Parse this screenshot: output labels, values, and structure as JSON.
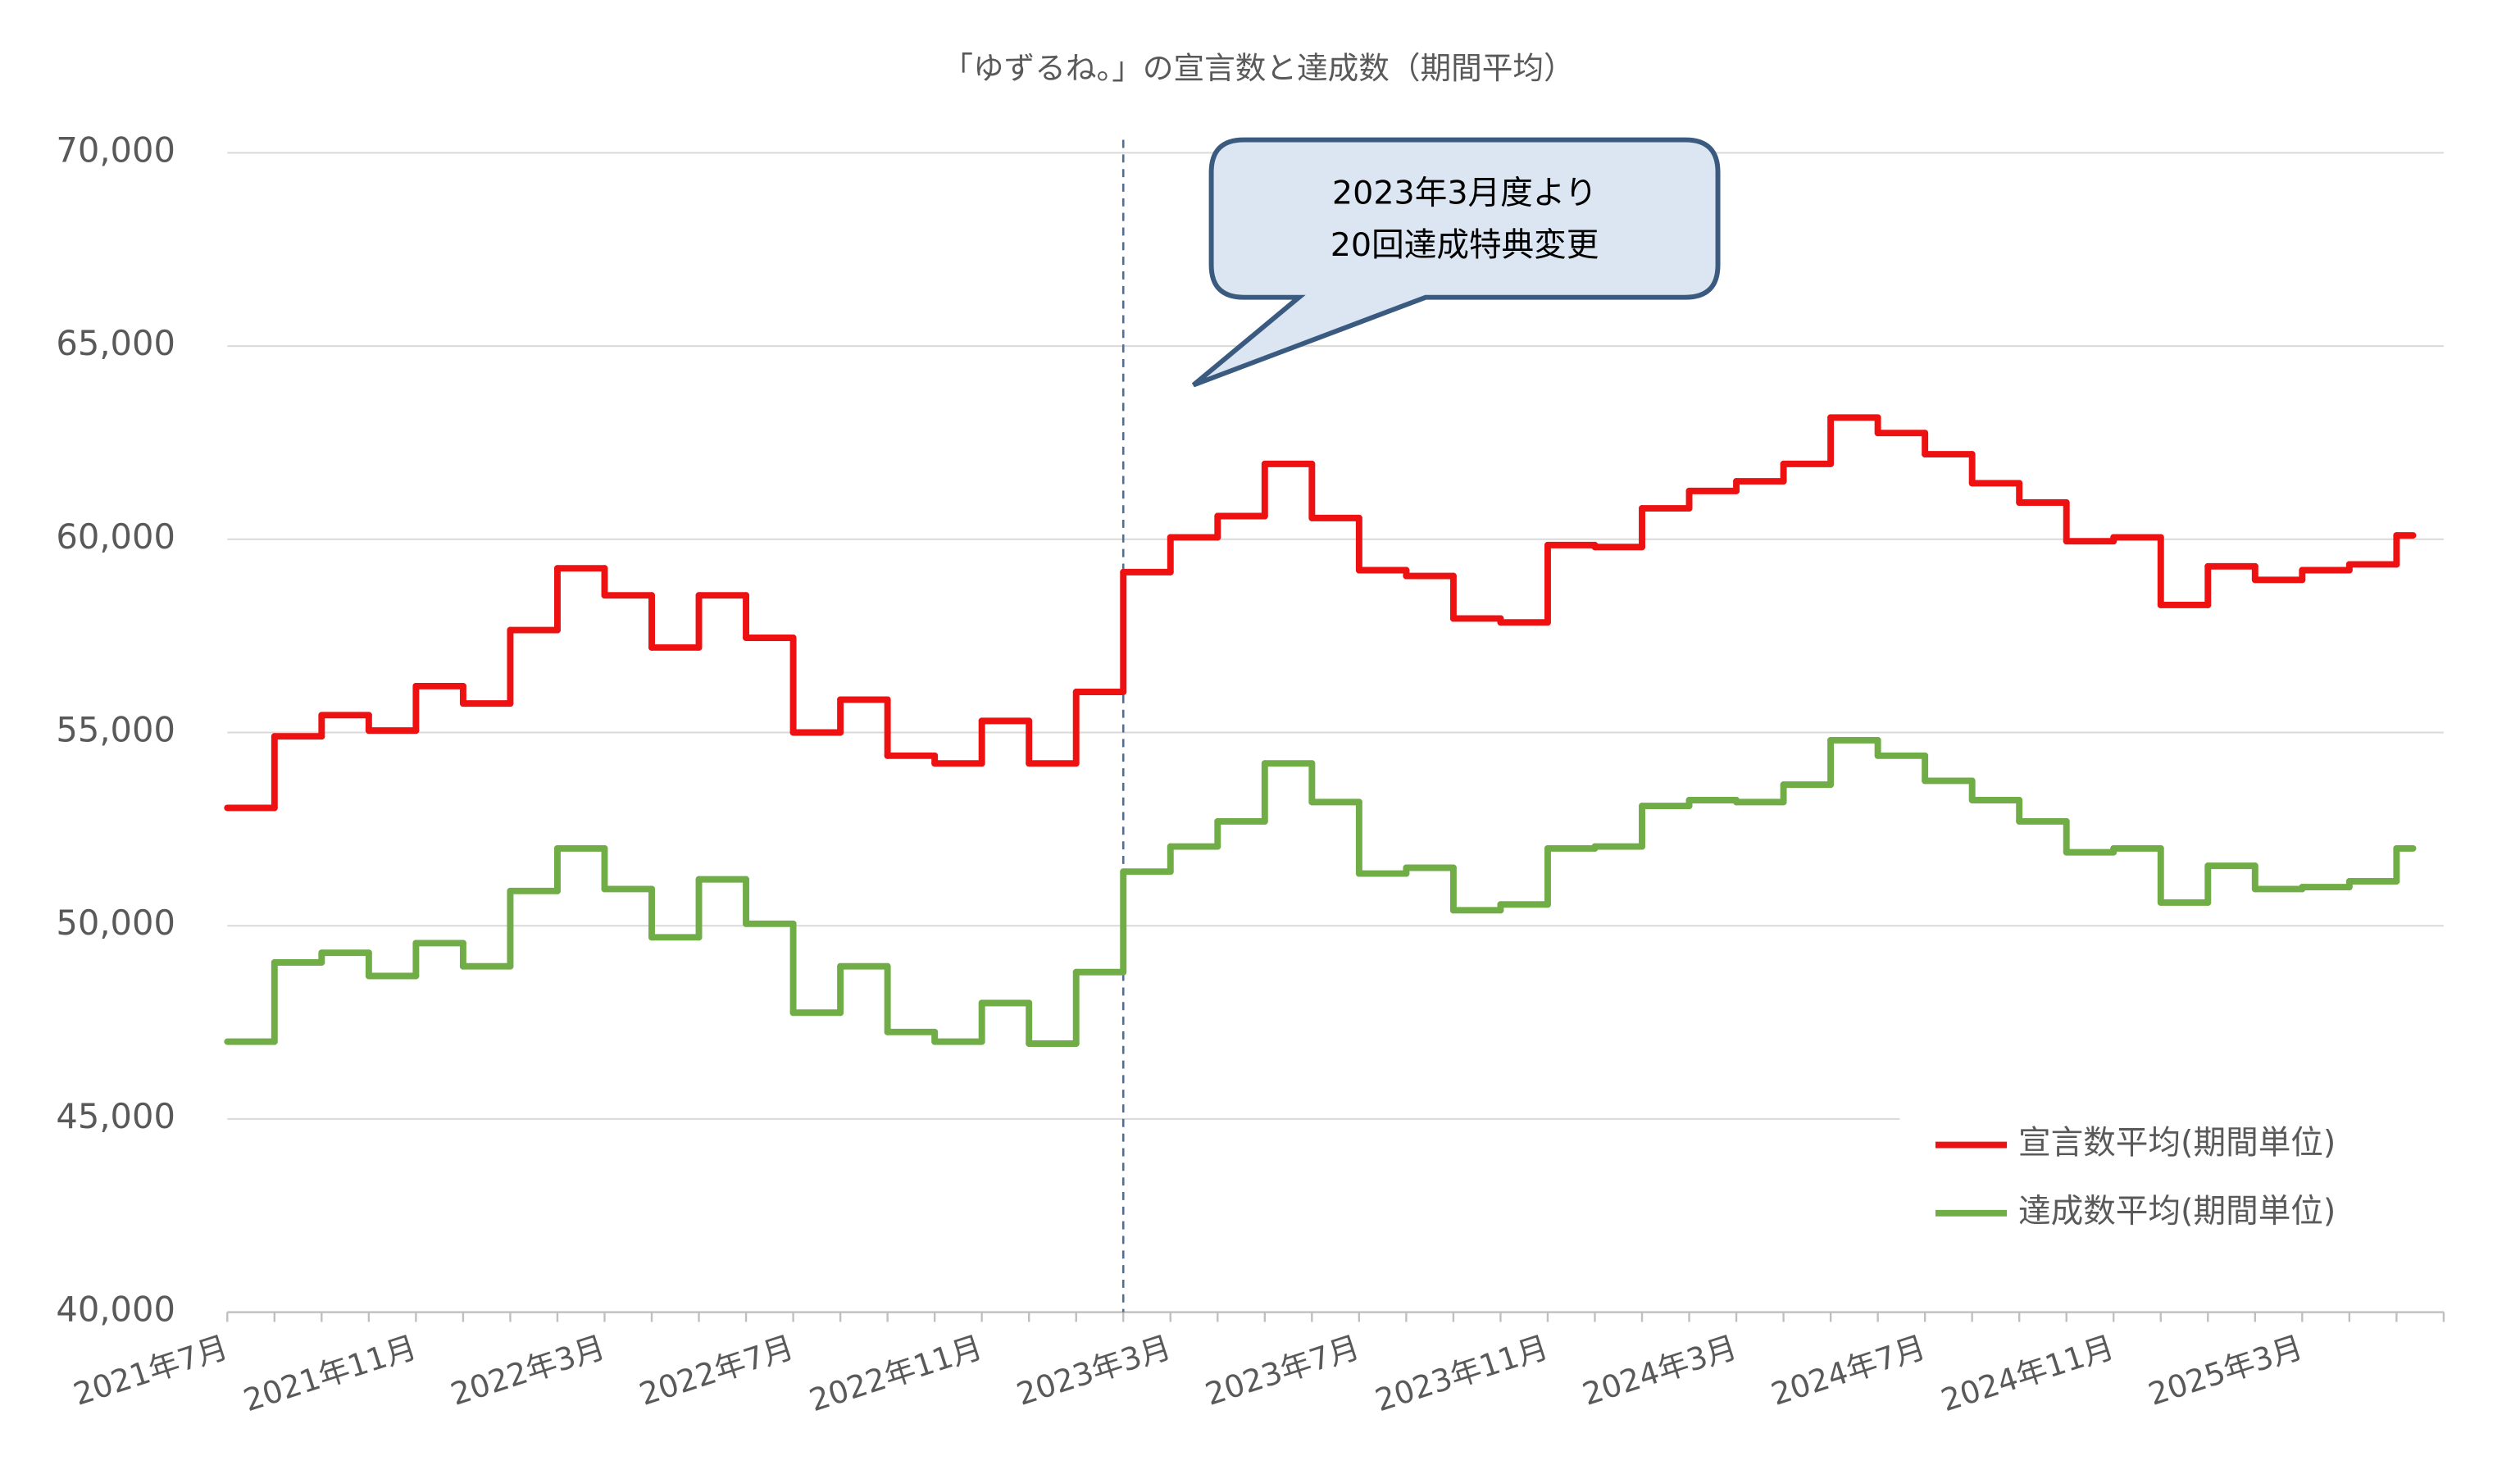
{
  "chart_data": {
    "type": "step",
    "title": "「ゆずるね。」の宣言数と達成数（期間平均）",
    "annotation": [
      "2023年3月度より",
      "20回達成特典変更"
    ],
    "categories": [
      "2021年7月",
      null,
      null,
      null,
      "2021年11月",
      null,
      null,
      null,
      "2022年3月",
      null,
      null,
      null,
      "2022年7月",
      null,
      null,
      null,
      "2022年11月",
      null,
      null,
      null,
      "2023年3月",
      null,
      null,
      null,
      "2023年7月",
      null,
      null,
      null,
      "2023年11月",
      null,
      null,
      null,
      "2024年3月",
      null,
      null,
      null,
      "2024年7月",
      null,
      null,
      null,
      "2024年11月",
      null,
      null,
      null,
      "2025年3月",
      null,
      null
    ],
    "series": [
      {
        "name": "宣言数平均(期間単位)",
        "color": "#ee1111",
        "values": [
          53050,
          54900,
          55450,
          55050,
          56200,
          55750,
          57650,
          59250,
          58550,
          57200,
          58550,
          57450,
          55000,
          55850,
          54400,
          54200,
          55300,
          54200,
          56050,
          59150,
          60050,
          60600,
          61950,
          60550,
          59200,
          59050,
          57950,
          57850,
          59850,
          59800,
          60800,
          61250,
          61500,
          61950,
          63150,
          62750,
          62200,
          61450,
          60950,
          59950,
          60050,
          58300,
          59300,
          58950,
          59200,
          59350,
          60100
        ]
      },
      {
        "name": "達成数平均(期間単位)",
        "color": "#70ad47",
        "values": [
          47000,
          49050,
          49300,
          48700,
          49550,
          48950,
          50900,
          52000,
          50950,
          49700,
          51200,
          50050,
          47750,
          48950,
          47250,
          47000,
          48000,
          46950,
          48800,
          51400,
          52050,
          52700,
          54200,
          53200,
          51350,
          51500,
          50400,
          50550,
          52000,
          52050,
          53100,
          53250,
          53200,
          53650,
          54800,
          54400,
          53750,
          53250,
          52700,
          51900,
          52000,
          50600,
          51550,
          50950,
          51000,
          51150,
          52000
        ]
      }
    ],
    "ylim": [
      40000,
      70000
    ],
    "yticks": [
      {
        "value": 40000,
        "label": "40,000"
      },
      {
        "value": 45000,
        "label": "45,000"
      },
      {
        "value": 50000,
        "label": "50,000"
      },
      {
        "value": 55000,
        "label": "55,000"
      },
      {
        "value": 60000,
        "label": "60,000"
      },
      {
        "value": 65000,
        "label": "65,000"
      },
      {
        "value": 70000,
        "label": "70,000"
      }
    ],
    "grid": true,
    "legend": "lower right"
  }
}
